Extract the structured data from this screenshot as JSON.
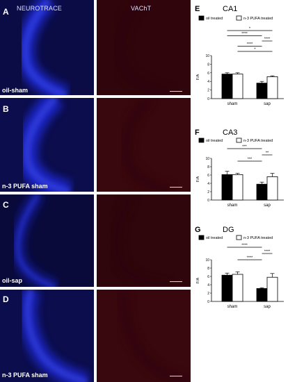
{
  "micrographs": {
    "header_left": "NEUROTRACE",
    "header_right": "VAChT",
    "rows": [
      {
        "letter": "A",
        "condition": "oil-sham"
      },
      {
        "letter": "B",
        "condition": "n-3 PUFA sham"
      },
      {
        "letter": "C",
        "condition": "oil-sap"
      },
      {
        "letter": "D",
        "condition": "n-3 PUFA sham"
      }
    ]
  },
  "chart_data": [
    {
      "panel": "E",
      "title": "CA1",
      "type": "bar",
      "categories": [
        "sham",
        "sap"
      ],
      "series": [
        {
          "name": "oil treated",
          "values": [
            5.7,
            3.6
          ],
          "errors": [
            0.3,
            0.4
          ],
          "color": "#000000"
        },
        {
          "name": "n-3 PUFA treated",
          "values": [
            5.7,
            5.1
          ],
          "errors": [
            0.3,
            0.2
          ],
          "color": "#ffffff"
        }
      ],
      "ylabel": "F/A",
      "ylim": [
        0,
        10
      ],
      "yticks": [
        0,
        2,
        4,
        6,
        8,
        10
      ],
      "legend": "top",
      "significance": [
        {
          "label": "*",
          "from": [
            0,
            0
          ],
          "to": [
            1,
            1
          ]
        },
        {
          "label": "****",
          "from": [
            0,
            0
          ],
          "to": [
            1,
            0
          ]
        },
        {
          "label": "****",
          "from": [
            1,
            0
          ],
          "to": [
            1,
            1
          ]
        },
        {
          "label": "****",
          "from": [
            0,
            1
          ],
          "to": [
            1,
            0
          ]
        },
        {
          "label": "*",
          "from": [
            0,
            1
          ],
          "to": [
            1,
            1
          ]
        }
      ]
    },
    {
      "panel": "F",
      "title": "CA3",
      "type": "bar",
      "categories": [
        "sham",
        "sap"
      ],
      "series": [
        {
          "name": "oil treated",
          "values": [
            6.1,
            3.8
          ],
          "errors": [
            0.8,
            0.5
          ],
          "color": "#000000"
        },
        {
          "name": "n-3 PUFA treated",
          "values": [
            6.1,
            5.6
          ],
          "errors": [
            0.3,
            0.8
          ],
          "color": "#ffffff"
        }
      ],
      "ylabel": "F/A",
      "ylim": [
        0,
        10
      ],
      "yticks": [
        0,
        2,
        4,
        6,
        8,
        10
      ],
      "legend": "top",
      "significance": [
        {
          "label": "***",
          "from": [
            0,
            0
          ],
          "to": [
            1,
            0
          ]
        },
        {
          "label": "**",
          "from": [
            1,
            0
          ],
          "to": [
            1,
            1
          ]
        },
        {
          "label": "***",
          "from": [
            0,
            1
          ],
          "to": [
            1,
            0
          ]
        }
      ]
    },
    {
      "panel": "G",
      "title": "DG",
      "type": "bar",
      "categories": [
        "sham",
        "sap"
      ],
      "series": [
        {
          "name": "oil treated",
          "values": [
            6.3,
            3.1
          ],
          "errors": [
            0.5,
            0.2
          ],
          "color": "#000000"
        },
        {
          "name": "n-3 PUFA treated",
          "values": [
            6.5,
            5.8
          ],
          "errors": [
            0.6,
            0.9
          ],
          "color": "#ffffff"
        }
      ],
      "ylabel": "F/A",
      "ylim": [
        0,
        10
      ],
      "yticks": [
        0,
        2,
        4,
        6,
        8,
        10
      ],
      "legend": "top",
      "significance": [
        {
          "label": "****",
          "from": [
            0,
            0
          ],
          "to": [
            1,
            0
          ]
        },
        {
          "label": "****",
          "from": [
            1,
            0
          ],
          "to": [
            1,
            1
          ]
        },
        {
          "label": "****",
          "from": [
            0,
            1
          ],
          "to": [
            1,
            0
          ]
        }
      ]
    }
  ]
}
